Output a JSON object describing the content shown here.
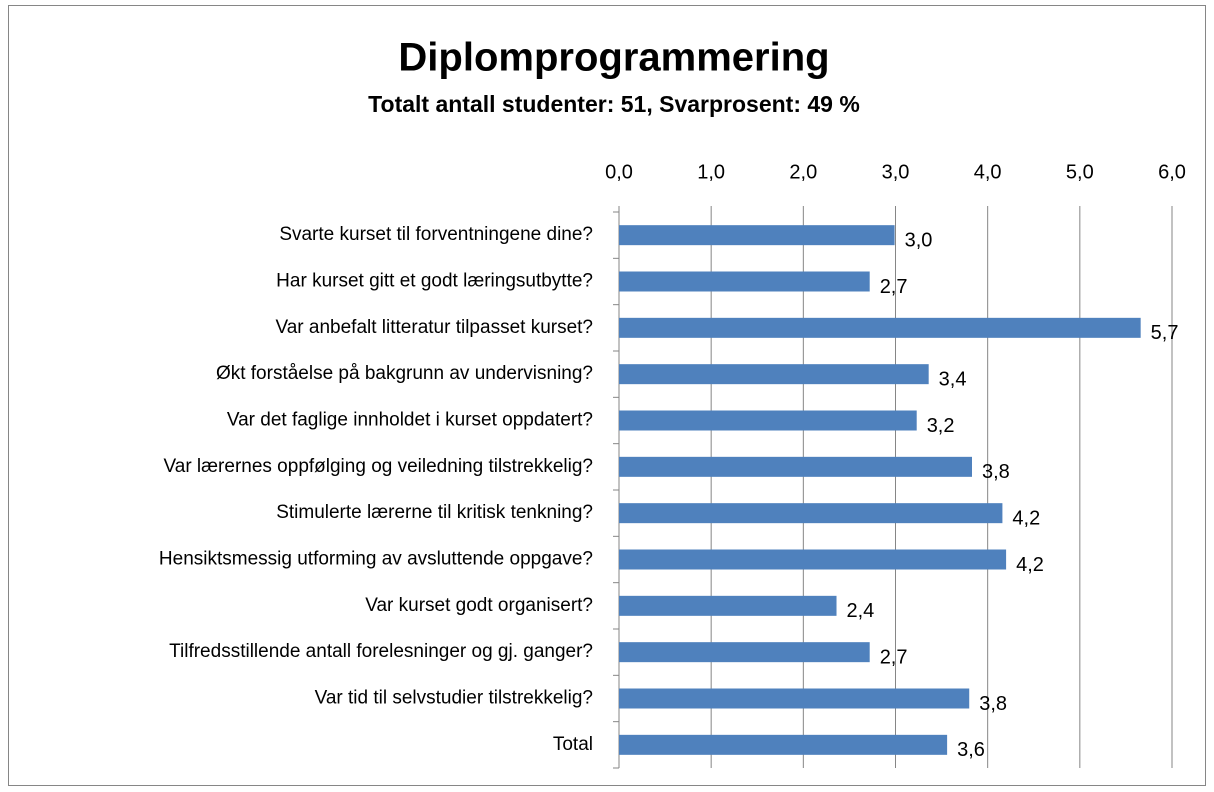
{
  "chart_data": {
    "type": "hbar",
    "title": "Diplomprogrammering",
    "subtitle": "Totalt antall studenter: 51,  Svarprosent: 49 %",
    "categories": [
      "Svarte kurset til forventningene dine?",
      "Har kurset gitt et godt læringsutbytte?",
      "Var anbefalt litteratur tilpasset kurset?",
      "Økt forståelse på bakgrunn av undervisning?",
      "Var det faglige innholdet i kurset oppdatert?",
      "Var lærernes oppfølging og veiledning tilstrekkelig?",
      "Stimulerte lærerne til kritisk tenkning?",
      "Hensiktsmessig utforming av avsluttende oppgave?",
      "Var kurset godt organisert?",
      "Tilfredsstillende antall forelesninger og gj. ganger?",
      "Var tid til selvstudier tilstrekkelig?",
      "Total"
    ],
    "values": [
      2.99,
      2.72,
      5.66,
      3.36,
      3.23,
      3.83,
      4.16,
      4.2,
      2.36,
      2.72,
      3.8,
      3.56
    ],
    "value_labels": [
      "3,0",
      "2,7",
      "5,7",
      "3,4",
      "3,2",
      "3,8",
      "4,2",
      "4,2",
      "2,4",
      "2,7",
      "3,8",
      "3,6"
    ],
    "color": "#4f81bd",
    "xlim": [
      0,
      6
    ],
    "xticks": [
      {
        "value": 0,
        "label": "0,0"
      },
      {
        "value": 1,
        "label": "1,0"
      },
      {
        "value": 2,
        "label": "2,0"
      },
      {
        "value": 3,
        "label": "3,0"
      },
      {
        "value": 4,
        "label": "4,0"
      },
      {
        "value": 5,
        "label": "5,0"
      },
      {
        "value": 6,
        "label": "6,0"
      }
    ],
    "grid": true
  }
}
